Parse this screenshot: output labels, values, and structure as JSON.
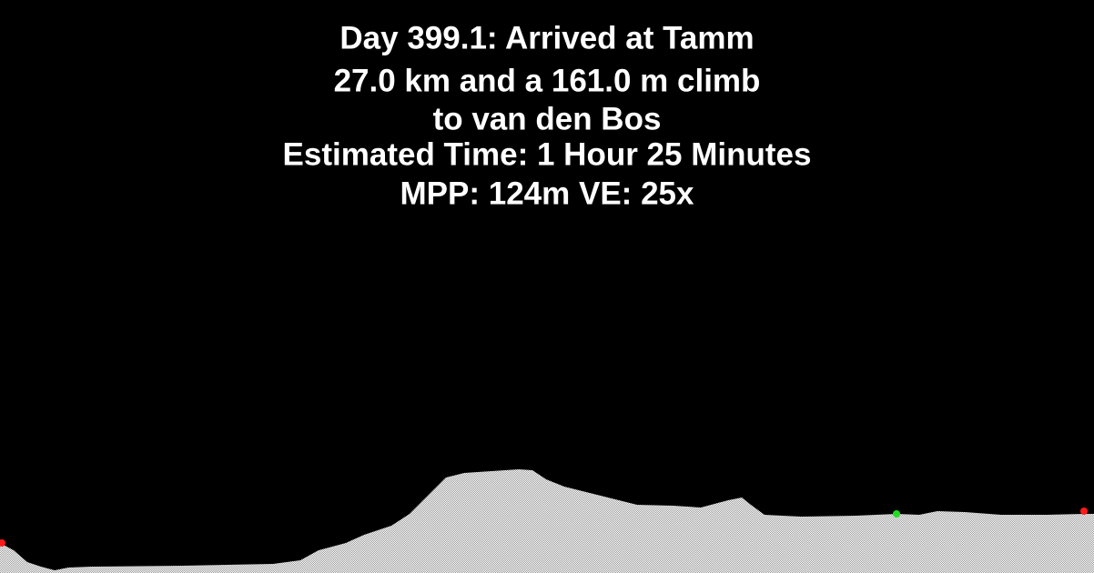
{
  "header": {
    "lines": [
      "Day 399.1: Arrived at Tamm",
      "27.0 km and a 161.0 m climb",
      "to van den Bos",
      "Estimated Time: 1 Hour 25 Minutes",
      "MPP: 124m VE: 25x"
    ]
  }
}
